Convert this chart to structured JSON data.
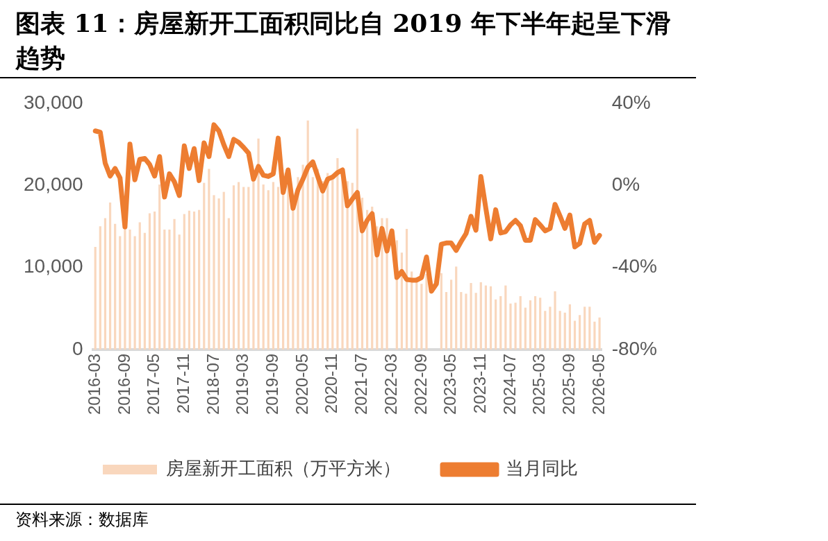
{
  "chart_data": {
    "type": "bar",
    "title": "图表 11：房屋新开工面积同比自 2019 年下半年起呈下滑趋势",
    "categories": [
      "2016-03",
      null,
      null,
      null,
      null,
      null,
      "2016-09",
      null,
      null,
      null,
      null,
      null,
      "2017-05",
      null,
      null,
      null,
      null,
      null,
      "2017-11",
      null,
      null,
      null,
      null,
      null,
      "2018-07",
      null,
      null,
      null,
      null,
      null,
      "2019-03",
      null,
      null,
      null,
      null,
      null,
      "2019-09",
      null,
      null,
      null,
      null,
      null,
      "2020-05",
      null,
      null,
      null,
      null,
      null,
      "2020-11",
      null,
      null,
      null,
      null,
      null,
      "2021-07",
      null,
      null,
      null,
      null,
      null,
      "2022-03",
      null,
      null,
      null,
      null,
      null,
      "2022-09",
      null,
      null,
      null,
      null,
      null,
      "2023-05",
      null,
      null,
      null,
      null,
      null,
      "2023-11",
      null,
      null,
      null,
      null,
      null,
      "2024-07",
      null,
      null,
      null,
      null,
      null,
      "2025-03",
      null,
      null,
      null,
      null,
      null,
      "2025-09",
      null,
      null,
      null,
      null,
      null,
      "2026-05"
    ],
    "series": [
      {
        "type": "bar",
        "name": "房屋新开工面积（万平方米）",
        "color": "#f9d7bd",
        "values": [
          12500,
          15000,
          16000,
          17900,
          15300,
          13800,
          14600,
          14600,
          13800,
          15500,
          14200,
          16600,
          16800,
          20100,
          14600,
          14600,
          15900,
          14000,
          16500,
          16900,
          16800,
          17000,
          20300,
          22000,
          18800,
          18400,
          19200,
          16000,
          20000,
          20400,
          19800,
          19800,
          20500,
          25700,
          20100,
          19400,
          20400,
          19800,
          21500,
          20000,
          19000,
          21000,
          22500,
          27900,
          21000,
          22000,
          20500,
          21500,
          21000,
          23300,
          21000,
          20500,
          20300,
          26900,
          18500,
          17000,
          17400,
          15000,
          16000,
          16000,
          null,
          13300,
          11800,
          14700,
          9500,
          8800,
          8000,
          9200,
          null,
          null,
          9300,
          7000,
          8500,
          10100,
          7000,
          6800,
          8100,
          6900,
          8200,
          7800,
          7700,
          6100,
          6500,
          7800,
          5600,
          5700,
          6500,
          5100,
          6000,
          6500,
          6300,
          4700,
          5200,
          7100,
          4700,
          4500,
          5500,
          3500,
          4200,
          5200,
          5200,
          3400,
          3900
        ]
      },
      {
        "type": "line",
        "name": "当月同比",
        "color": "#ed7d31",
        "axis": "y2",
        "values": [
          26.5,
          25.9,
          10.8,
          4.5,
          8.2,
          3.6,
          -20.3,
          20.1,
          2.7,
          12.7,
          13.1,
          10.1,
          4.5,
          14,
          -5.7,
          5.6,
          1.7,
          -5,
          19.2,
          8.2,
          17.9,
          2.3,
          20.7,
          14,
          29.5,
          26.5,
          19.8,
          14,
          22.4,
          20.9,
          18.5,
          15.7,
          3,
          9.2,
          4.9,
          4.3,
          5.6,
          23,
          -3.5,
          7.5,
          -11.2,
          -2.2,
          3,
          8.8,
          11.4,
          4.3,
          -2.8,
          3,
          4,
          6.2,
          7.5,
          -10,
          -6.7,
          -3.5,
          -22.2,
          -17.1,
          -13.8,
          -33.9,
          -21,
          -32,
          -22.2,
          -44.9,
          -42,
          -45.9,
          -46.2,
          -46.2,
          -44.9,
          -34.9,
          -51.6,
          -48,
          -28.7,
          -28.1,
          -28.1,
          -31.7,
          -27.4,
          -23.5,
          -15.1,
          -21.9,
          4.3,
          -11.2,
          -26.1,
          -11.9,
          -23.2,
          -22.6,
          -19.3,
          -17.1,
          -19.7,
          -26.8,
          -26.8,
          -16.7,
          -19.3,
          -22.2,
          -21,
          -9.3,
          -14.9,
          -21,
          -14.5,
          -30,
          -28.3,
          -18.8,
          -17.1,
          -27.8,
          -24.4
        ]
      }
    ],
    "ylim": [
      0,
      30000
    ],
    "yticks": [
      {
        "value": 0,
        "label": "0"
      },
      {
        "value": 10000,
        "label": "10,000"
      },
      {
        "value": 20000,
        "label": "20,000"
      },
      {
        "value": 30000,
        "label": "30,000"
      }
    ],
    "y2lim": [
      -80,
      40
    ],
    "y2ticks": [
      {
        "value": -80,
        "label": "-80%"
      },
      {
        "value": -40,
        "label": "-40%"
      },
      {
        "value": 0,
        "label": "0%"
      },
      {
        "value": 40,
        "label": "40%"
      }
    ],
    "grid": false,
    "legend": "bottom",
    "annotations": [
      "资料来源：数据库"
    ]
  }
}
